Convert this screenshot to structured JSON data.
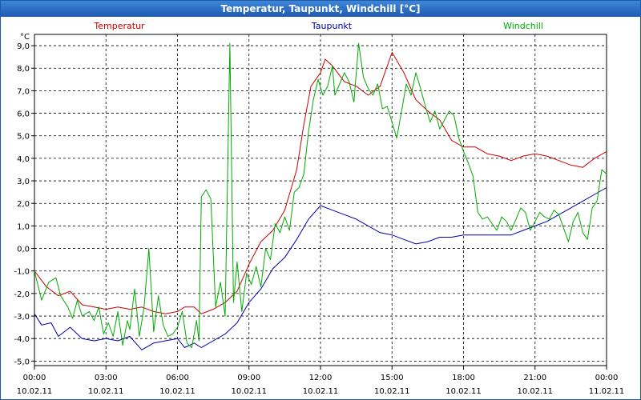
{
  "chart_data": {
    "type": "line",
    "title": "Temperatur, Taupunkt, Windchill [°C]",
    "ylabel": "°C",
    "ylim": [
      -5.2,
      9.5
    ],
    "xlim": [
      0,
      24
    ],
    "y_ticks": [
      "9,0",
      "8,0",
      "7,0",
      "6,0",
      "5,0",
      "4,0",
      "3,0",
      "2,0",
      "1,0",
      "0,0",
      "-1,0",
      "-2,0",
      "-3,0",
      "-4,0",
      "-5,0"
    ],
    "y_tick_values": [
      9,
      8,
      7,
      6,
      5,
      4,
      3,
      2,
      1,
      0,
      -1,
      -2,
      -3,
      -4,
      -5
    ],
    "x_ticks": [
      {
        "time": "00:00",
        "date": "10.02.11"
      },
      {
        "time": "03:00",
        "date": "10.02.11"
      },
      {
        "time": "06:00",
        "date": "10.02.11"
      },
      {
        "time": "09:00",
        "date": "10.02.11"
      },
      {
        "time": "12:00",
        "date": "10.02.11"
      },
      {
        "time": "15:00",
        "date": "10.02.11"
      },
      {
        "time": "18:00",
        "date": "10.02.11"
      },
      {
        "time": "21:00",
        "date": "10.02.11"
      },
      {
        "time": "00:00",
        "date": "11.02.11"
      }
    ],
    "x_tick_values": [
      0,
      3,
      6,
      9,
      12,
      15,
      18,
      21,
      24
    ],
    "grid": true,
    "series": [
      {
        "name": "Temperatur",
        "color": "#cc0000",
        "points": [
          [
            0,
            -1
          ],
          [
            0.5,
            -1.7
          ],
          [
            1,
            -2.1
          ],
          [
            1.5,
            -1.9
          ],
          [
            2,
            -2.5
          ],
          [
            2.5,
            -2.6
          ],
          [
            3,
            -2.7
          ],
          [
            3.5,
            -2.6
          ],
          [
            4,
            -2.7
          ],
          [
            4.5,
            -2.6
          ],
          [
            5,
            -2.8
          ],
          [
            5.5,
            -2.9
          ],
          [
            6,
            -2.8
          ],
          [
            6.3,
            -2.6
          ],
          [
            6.7,
            -2.6
          ],
          [
            7,
            -2.9
          ],
          [
            7.5,
            -2.7
          ],
          [
            8,
            -2.4
          ],
          [
            8.5,
            -1.9
          ],
          [
            9,
            -0.7
          ],
          [
            9.5,
            0.3
          ],
          [
            10,
            0.8
          ],
          [
            10.5,
            1.7
          ],
          [
            11,
            3.5
          ],
          [
            11.3,
            5.5
          ],
          [
            11.6,
            7.2
          ],
          [
            12,
            7.8
          ],
          [
            12.2,
            8.4
          ],
          [
            12.5,
            8.1
          ],
          [
            13,
            7.4
          ],
          [
            13.5,
            7.2
          ],
          [
            14,
            6.8
          ],
          [
            14.5,
            7.2
          ],
          [
            15,
            8.7
          ],
          [
            15.5,
            7.8
          ],
          [
            16,
            6.6
          ],
          [
            16.5,
            6.1
          ],
          [
            17,
            5.7
          ],
          [
            17.5,
            4.8
          ],
          [
            18,
            4.5
          ],
          [
            18.5,
            4.5
          ],
          [
            19,
            4.2
          ],
          [
            19.5,
            4.1
          ],
          [
            20,
            3.9
          ],
          [
            20.5,
            4.1
          ],
          [
            21,
            4.2
          ],
          [
            21.5,
            4.1
          ],
          [
            22,
            3.9
          ],
          [
            22.5,
            3.7
          ],
          [
            23,
            3.6
          ],
          [
            23.5,
            4
          ],
          [
            24,
            4.3
          ]
        ]
      },
      {
        "name": "Taupunkt",
        "color": "#0000aa",
        "points": [
          [
            0,
            -2.9
          ],
          [
            0.3,
            -3.4
          ],
          [
            0.7,
            -3.3
          ],
          [
            1,
            -3.9
          ],
          [
            1.5,
            -3.5
          ],
          [
            2,
            -4
          ],
          [
            2.5,
            -4.1
          ],
          [
            3,
            -4
          ],
          [
            3.5,
            -4.1
          ],
          [
            4,
            -3.9
          ],
          [
            4.5,
            -4.5
          ],
          [
            5,
            -4.2
          ],
          [
            5.5,
            -4.1
          ],
          [
            6,
            -4
          ],
          [
            6.3,
            -4.4
          ],
          [
            6.7,
            -4.2
          ],
          [
            7,
            -4.4
          ],
          [
            7.5,
            -4.1
          ],
          [
            8,
            -3.8
          ],
          [
            8.5,
            -3.3
          ],
          [
            9,
            -2.4
          ],
          [
            9.5,
            -1.8
          ],
          [
            10,
            -0.9
          ],
          [
            10.5,
            -0.4
          ],
          [
            11,
            0.4
          ],
          [
            11.5,
            1.3
          ],
          [
            12,
            1.9
          ],
          [
            12.5,
            1.7
          ],
          [
            13,
            1.5
          ],
          [
            13.5,
            1.3
          ],
          [
            14,
            1
          ],
          [
            14.5,
            0.7
          ],
          [
            15,
            0.6
          ],
          [
            15.5,
            0.4
          ],
          [
            16,
            0.2
          ],
          [
            16.5,
            0.3
          ],
          [
            17,
            0.5
          ],
          [
            17.5,
            0.5
          ],
          [
            18,
            0.6
          ],
          [
            18.5,
            0.6
          ],
          [
            19,
            0.6
          ],
          [
            19.5,
            0.6
          ],
          [
            20,
            0.6
          ],
          [
            20.5,
            0.8
          ],
          [
            21,
            1
          ],
          [
            21.5,
            1.2
          ],
          [
            22,
            1.5
          ],
          [
            22.5,
            1.8
          ],
          [
            23,
            2.1
          ],
          [
            23.5,
            2.4
          ],
          [
            24,
            2.7
          ]
        ]
      },
      {
        "name": "Windchill",
        "color": "#00aa00",
        "points": [
          [
            0,
            -1
          ],
          [
            0.3,
            -2.3
          ],
          [
            0.6,
            -1.5
          ],
          [
            0.9,
            -1.3
          ],
          [
            1.1,
            -2.1
          ],
          [
            1.4,
            -2.6
          ],
          [
            1.6,
            -3.1
          ],
          [
            1.8,
            -2.3
          ],
          [
            2,
            -3
          ],
          [
            2.3,
            -2.8
          ],
          [
            2.5,
            -3.2
          ],
          [
            2.7,
            -2.6
          ],
          [
            2.9,
            -3.8
          ],
          [
            3.1,
            -3.3
          ],
          [
            3.3,
            -3.9
          ],
          [
            3.5,
            -2.8
          ],
          [
            3.7,
            -4.3
          ],
          [
            3.9,
            -3.2
          ],
          [
            4,
            -3.6
          ],
          [
            4.2,
            -1.8
          ],
          [
            4.4,
            -3.9
          ],
          [
            4.6,
            -2.6
          ],
          [
            4.8,
            0
          ],
          [
            5,
            -3.7
          ],
          [
            5.2,
            -2.1
          ],
          [
            5.4,
            -3.4
          ],
          [
            5.6,
            -3.9
          ],
          [
            5.8,
            -3.8
          ],
          [
            6,
            -3.5
          ],
          [
            6.2,
            -2.8
          ],
          [
            6.4,
            -4.2
          ],
          [
            6.6,
            -4.4
          ],
          [
            6.8,
            -3.2
          ],
          [
            6.9,
            -4.1
          ],
          [
            7,
            2.3
          ],
          [
            7.2,
            2.6
          ],
          [
            7.4,
            2.2
          ],
          [
            7.6,
            -2.6
          ],
          [
            7.8,
            -1.5
          ],
          [
            8,
            -3
          ],
          [
            8.2,
            9.1
          ],
          [
            8.35,
            -2.4
          ],
          [
            8.5,
            -0.6
          ],
          [
            8.7,
            -2.8
          ],
          [
            8.9,
            -1.1
          ],
          [
            9.1,
            -1.6
          ],
          [
            9.3,
            -0.8
          ],
          [
            9.5,
            -1.7
          ],
          [
            9.7,
            0
          ],
          [
            9.9,
            -0.5
          ],
          [
            10.1,
            1.1
          ],
          [
            10.3,
            0.7
          ],
          [
            10.5,
            1.4
          ],
          [
            10.7,
            0.8
          ],
          [
            10.9,
            2.5
          ],
          [
            11.1,
            2.7
          ],
          [
            11.3,
            3.3
          ],
          [
            11.5,
            5.2
          ],
          [
            11.7,
            6.6
          ],
          [
            11.9,
            7.5
          ],
          [
            12.1,
            6.8
          ],
          [
            12.3,
            7.2
          ],
          [
            12.5,
            8.1
          ],
          [
            12.6,
            6.8
          ],
          [
            12.8,
            7.3
          ],
          [
            13,
            7.8
          ],
          [
            13.2,
            7.4
          ],
          [
            13.4,
            6.5
          ],
          [
            13.6,
            9.1
          ],
          [
            13.8,
            7.6
          ],
          [
            14,
            7.1
          ],
          [
            14.2,
            6.8
          ],
          [
            14.4,
            7.3
          ],
          [
            14.6,
            6.2
          ],
          [
            14.8,
            6.3
          ],
          [
            15,
            5.6
          ],
          [
            15.2,
            4.9
          ],
          [
            15.4,
            6.1
          ],
          [
            15.6,
            7.3
          ],
          [
            15.8,
            6.8
          ],
          [
            16,
            7.8
          ],
          [
            16.2,
            7.1
          ],
          [
            16.4,
            6.3
          ],
          [
            16.6,
            5.6
          ],
          [
            16.8,
            6.1
          ],
          [
            17,
            5.3
          ],
          [
            17.2,
            5.7
          ],
          [
            17.4,
            6.1
          ],
          [
            17.6,
            5.9
          ],
          [
            17.8,
            4.9
          ],
          [
            18,
            4.3
          ],
          [
            18.2,
            3.8
          ],
          [
            18.4,
            3.2
          ],
          [
            18.6,
            1.6
          ],
          [
            18.8,
            1.3
          ],
          [
            19,
            1.4
          ],
          [
            19.2,
            1.1
          ],
          [
            19.4,
            0.8
          ],
          [
            19.6,
            1.4
          ],
          [
            19.8,
            1.2
          ],
          [
            20,
            0.8
          ],
          [
            20.2,
            1.3
          ],
          [
            20.4,
            1.8
          ],
          [
            20.6,
            1.6
          ],
          [
            20.8,
            0.8
          ],
          [
            21,
            1.2
          ],
          [
            21.2,
            1.6
          ],
          [
            21.4,
            1.4
          ],
          [
            21.6,
            1.3
          ],
          [
            21.8,
            1.7
          ],
          [
            22,
            1.5
          ],
          [
            22.2,
            0.9
          ],
          [
            22.4,
            0.3
          ],
          [
            22.6,
            1.2
          ],
          [
            22.8,
            1.6
          ],
          [
            23,
            0.7
          ],
          [
            23.2,
            0.4
          ],
          [
            23.4,
            1.8
          ],
          [
            23.6,
            2.1
          ],
          [
            23.8,
            3.5
          ],
          [
            24,
            3.3
          ]
        ]
      }
    ]
  }
}
